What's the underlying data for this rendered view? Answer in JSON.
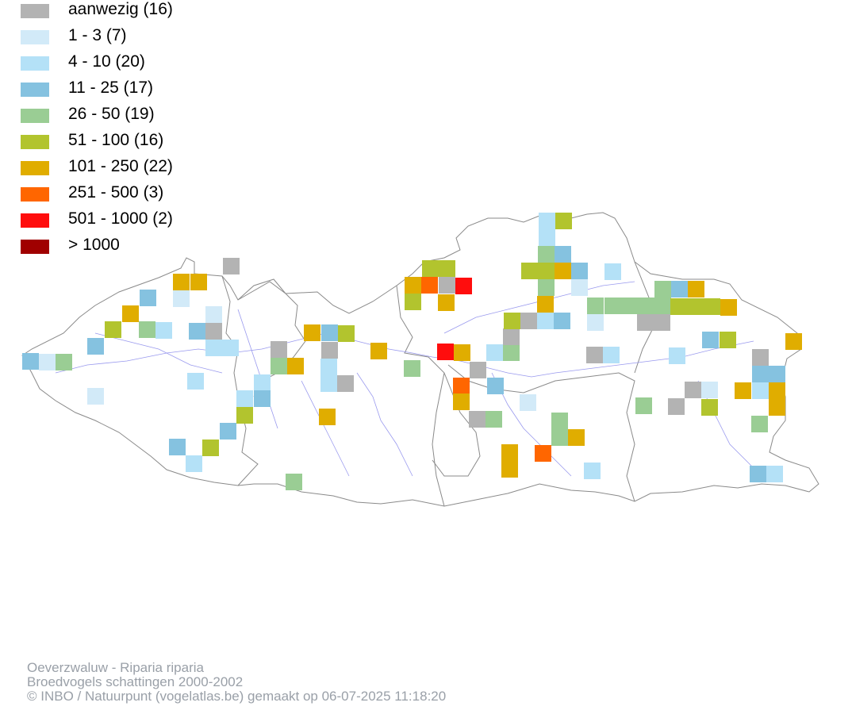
{
  "legend": {
    "items": [
      {
        "label": "aanwezig (16)",
        "color": "#b3b3b3"
      },
      {
        "label": "1 - 3 (7)",
        "color": "#d2eaf8"
      },
      {
        "label": "4 - 10 (20)",
        "color": "#b4e1f7"
      },
      {
        "label": "11 - 25 (17)",
        "color": "#85c2e0"
      },
      {
        "label": "26 - 50 (19)",
        "color": "#9acd94"
      },
      {
        "label": "51 - 100 (16)",
        "color": "#b2c42e"
      },
      {
        "label": "101 - 250 (22)",
        "color": "#e0ad00"
      },
      {
        "label": "251 - 500 (3)",
        "color": "#ff6600"
      },
      {
        "label": "501 - 1000 (2)",
        "color": "#ff0d0d"
      },
      {
        "label": "> 1000",
        "color": "#a00000"
      }
    ]
  },
  "credits": {
    "species": "Oeverzwaluw - Riparia riparia",
    "dataset": "Broedvogels schattingen 2000-2002",
    "copyright": "© INBO / Natuurpunt (vogelatlas.be) gemaakt op 06-07-2025 11:18:20"
  }
}
